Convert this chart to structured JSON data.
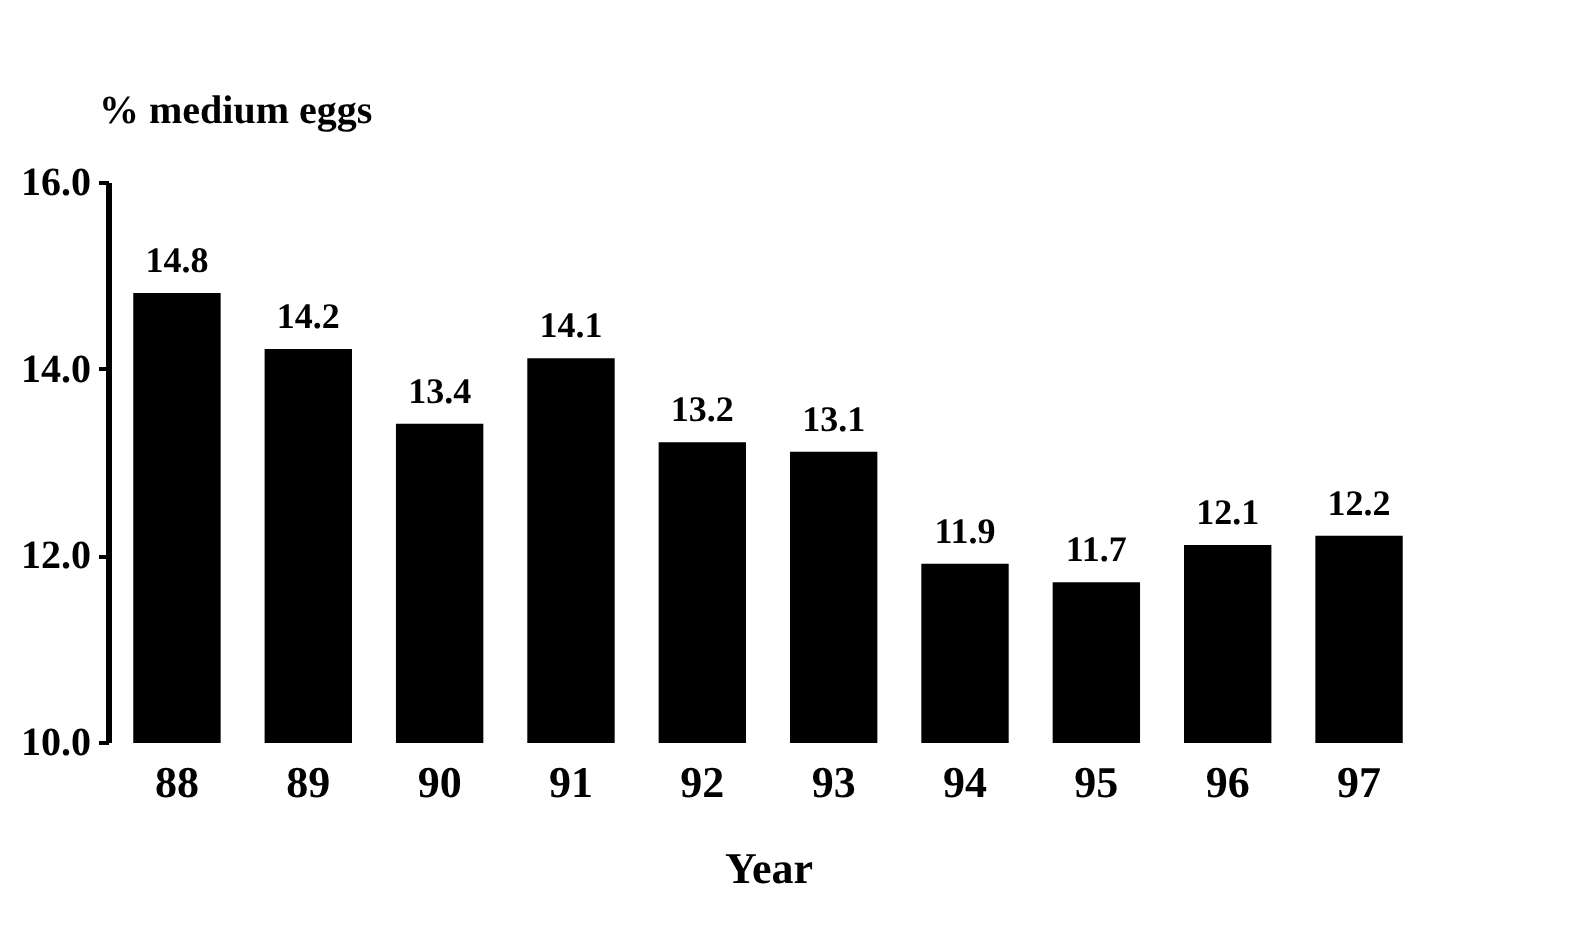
{
  "chart_data": {
    "type": "bar",
    "ylabel": "% medium eggs",
    "xlabel": "Year",
    "categories": [
      "88",
      "89",
      "90",
      "91",
      "92",
      "93",
      "94",
      "95",
      "96",
      "97"
    ],
    "values": [
      14.8,
      14.2,
      13.4,
      14.1,
      13.2,
      13.1,
      11.9,
      11.7,
      12.1,
      12.2
    ],
    "color": "#000000",
    "ylim": [
      10,
      16
    ],
    "yticks": [
      {
        "value": 10,
        "label": "10.0"
      },
      {
        "value": 12,
        "label": "12.0"
      },
      {
        "value": 14,
        "label": "14.0"
      },
      {
        "value": 16,
        "label": "16.0"
      }
    ],
    "data_labels": true
  }
}
